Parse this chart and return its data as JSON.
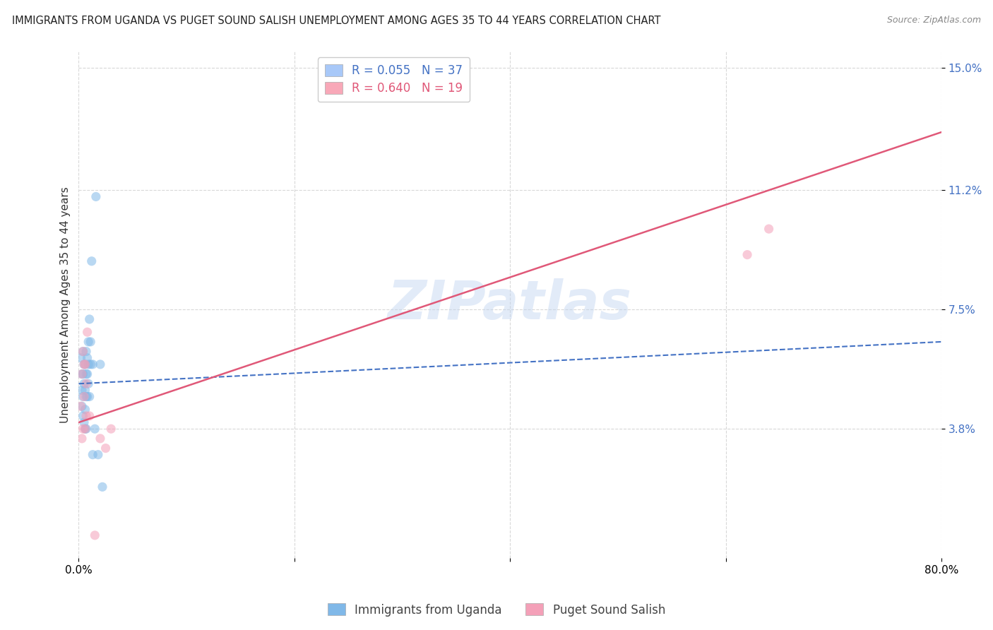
{
  "title": "IMMIGRANTS FROM UGANDA VS PUGET SOUND SALISH UNEMPLOYMENT AMONG AGES 35 TO 44 YEARS CORRELATION CHART",
  "source": "Source: ZipAtlas.com",
  "ylabel": "Unemployment Among Ages 35 to 44 years",
  "xlim": [
    0.0,
    0.8
  ],
  "ylim": [
    -0.002,
    0.155
  ],
  "ytick_labels": [
    "3.8%",
    "7.5%",
    "11.2%",
    "15.0%"
  ],
  "ytick_positions": [
    0.038,
    0.075,
    0.112,
    0.15
  ],
  "watermark": "ZIPatlas",
  "legend_upper": [
    {
      "label": "R = 0.055   N = 37",
      "color": "#a8c8f8"
    },
    {
      "label": "R = 0.640   N = 19",
      "color": "#f8a8b8"
    }
  ],
  "blue_scatter_x": [
    0.002,
    0.003,
    0.003,
    0.003,
    0.004,
    0.004,
    0.004,
    0.004,
    0.005,
    0.005,
    0.005,
    0.006,
    0.006,
    0.006,
    0.006,
    0.007,
    0.007,
    0.007,
    0.007,
    0.008,
    0.008,
    0.008,
    0.009,
    0.009,
    0.009,
    0.01,
    0.01,
    0.011,
    0.011,
    0.012,
    0.013,
    0.013,
    0.015,
    0.016,
    0.018,
    0.02,
    0.022
  ],
  "blue_scatter_y": [
    0.06,
    0.045,
    0.05,
    0.055,
    0.042,
    0.048,
    0.055,
    0.062,
    0.04,
    0.052,
    0.058,
    0.038,
    0.044,
    0.05,
    0.058,
    0.038,
    0.048,
    0.055,
    0.062,
    0.048,
    0.055,
    0.06,
    0.052,
    0.058,
    0.065,
    0.048,
    0.072,
    0.058,
    0.065,
    0.09,
    0.03,
    0.058,
    0.038,
    0.11,
    0.03,
    0.058,
    0.02
  ],
  "pink_scatter_x": [
    0.002,
    0.003,
    0.003,
    0.004,
    0.004,
    0.005,
    0.005,
    0.006,
    0.006,
    0.007,
    0.007,
    0.008,
    0.01,
    0.015,
    0.02,
    0.025,
    0.03,
    0.62,
    0.64
  ],
  "pink_scatter_y": [
    0.045,
    0.035,
    0.055,
    0.038,
    0.062,
    0.048,
    0.058,
    0.038,
    0.058,
    0.042,
    0.052,
    0.068,
    0.042,
    0.005,
    0.035,
    0.032,
    0.038,
    0.092,
    0.1
  ],
  "blue_line_x": [
    0.0,
    0.8
  ],
  "blue_line_y": [
    0.052,
    0.065
  ],
  "pink_line_x": [
    0.0,
    0.8
  ],
  "pink_line_y": [
    0.04,
    0.13
  ],
  "background_color": "#ffffff",
  "scatter_alpha": 0.55,
  "scatter_size": 90,
  "blue_color": "#80b8e8",
  "pink_color": "#f4a0b8",
  "blue_line_color": "#4472c4",
  "pink_line_color": "#e05878",
  "grid_color": "#d8d8d8",
  "title_fontsize": 10.5,
  "axis_label_fontsize": 11,
  "tick_fontsize": 11,
  "legend_fontsize": 12
}
